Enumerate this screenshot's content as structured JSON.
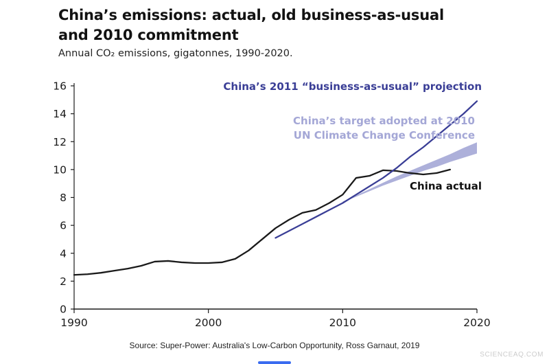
{
  "header": {
    "title_lines": [
      "China’s emissions: actual, old business-as-usual",
      "and 2010 commitment"
    ],
    "subtitle": "Annual CO₂ emissions, gigatonnes, 1990-2020."
  },
  "chart_data": {
    "type": "line",
    "title": "China’s emissions: actual, old business-as-usual and 2010 commitment",
    "subtitle": "Annual CO₂ emissions, gigatonnes, 1990-2020.",
    "xlabel": "",
    "ylabel": "",
    "xlim": [
      1990,
      2020
    ],
    "ylim": [
      0,
      16
    ],
    "x_ticks": [
      "1990",
      "2000",
      "2010",
      "2020"
    ],
    "y_ticks": [
      0,
      2,
      4,
      6,
      8,
      10,
      12,
      14,
      16
    ],
    "grid": false,
    "legend_position": "in-plot annotations",
    "axis_color": "#1a1a1a",
    "series": [
      {
        "name": "China actual",
        "type": "line",
        "color": "#1a1a1a",
        "x": [
          1990,
          1991,
          1992,
          1993,
          1994,
          1995,
          1996,
          1997,
          1998,
          1999,
          2000,
          2001,
          2002,
          2003,
          2004,
          2005,
          2006,
          2007,
          2008,
          2009,
          2010,
          2011,
          2012,
          2013,
          2014,
          2015,
          2016,
          2017,
          2018
        ],
        "y": [
          2.45,
          2.5,
          2.6,
          2.75,
          2.9,
          3.1,
          3.4,
          3.45,
          3.35,
          3.3,
          3.3,
          3.35,
          3.6,
          4.2,
          5.0,
          5.8,
          6.4,
          6.9,
          7.1,
          7.6,
          8.2,
          9.4,
          9.55,
          9.95,
          9.9,
          9.75,
          9.65,
          9.75,
          10.0
        ]
      },
      {
        "name": "China’s 2011 “business-as-usual” projection",
        "type": "line",
        "color": "#3a3e96",
        "x": [
          2005,
          2006,
          2007,
          2008,
          2009,
          2010,
          2011,
          2012,
          2013,
          2014,
          2015,
          2016,
          2017,
          2018,
          2019,
          2020
        ],
        "y": [
          5.1,
          5.6,
          6.1,
          6.6,
          7.1,
          7.6,
          8.2,
          8.8,
          9.4,
          10.1,
          10.9,
          11.6,
          12.4,
          13.2,
          14.0,
          14.9
        ]
      },
      {
        "name": "China’s target adopted at 2010 UN Climate Change Conference",
        "type": "band",
        "color": "#adb0da",
        "x": [
          2010,
          2011,
          2012,
          2013,
          2014,
          2015,
          2016,
          2017,
          2018,
          2019,
          2020
        ],
        "y_lower": [
          7.65,
          8.05,
          8.45,
          8.85,
          9.2,
          9.55,
          9.9,
          10.2,
          10.55,
          10.85,
          11.15
        ],
        "y_upper": [
          7.7,
          8.15,
          8.6,
          9.05,
          9.5,
          9.9,
          10.3,
          10.7,
          11.1,
          11.55,
          11.95
        ]
      }
    ],
    "annotations": {
      "bau_label": "China’s 2011 “business-as-usual” projection",
      "target_label": "China’s target adopted at 2010\nUN Climate Change Conference",
      "actual_label": "China actual"
    },
    "annotation_colors": {
      "bau": "#3a3e96",
      "target": "#a4a7d6",
      "actual": "#111111"
    }
  },
  "footer": {
    "source": "Source:  Super-Power: Australia's Low-Carbon Opportunity, Ross Garnaut, 2019",
    "watermark": "SCIENCEAQ.COM",
    "indicator_color": "#3b6cf0"
  }
}
